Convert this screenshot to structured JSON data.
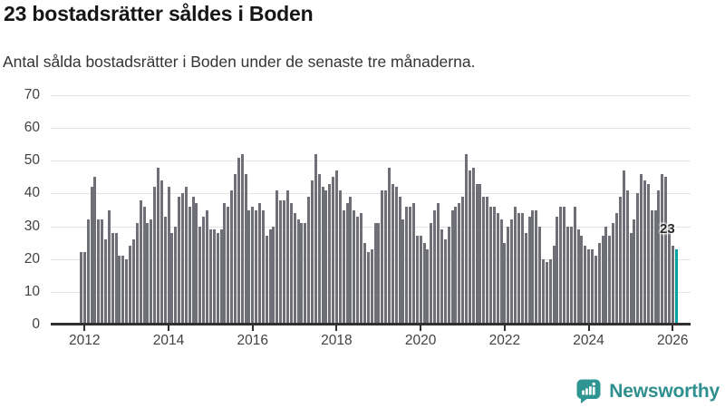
{
  "chart_data": {
    "type": "bar",
    "title": "23 bostadsrätter såldes i Boden",
    "subtitle": "Antal sålda bostadsrätter i Boden under de senaste tre månaderna.",
    "ylim": [
      0,
      70
    ],
    "yticks": [
      0,
      10,
      20,
      30,
      40,
      50,
      60,
      70
    ],
    "x_tick_labels": [
      "2012",
      "2014",
      "2016",
      "2018",
      "2020",
      "2022",
      "2024",
      "2026"
    ],
    "grid": true,
    "legend": "none",
    "bar_color": "#6f6f78",
    "values": [
      22,
      22,
      32,
      42,
      45,
      32,
      32,
      26,
      35,
      28,
      28,
      21,
      21,
      20,
      24,
      26,
      31,
      38,
      36,
      31,
      32,
      42,
      48,
      44,
      33,
      42,
      28,
      30,
      39,
      40,
      42,
      36,
      39,
      37,
      30,
      33,
      35,
      29,
      29,
      28,
      29,
      37,
      36,
      41,
      46,
      51,
      52,
      46,
      35,
      36,
      35,
      37,
      35,
      27,
      29,
      30,
      41,
      38,
      38,
      41,
      37,
      34,
      32,
      31,
      31,
      39,
      44,
      52,
      46,
      42,
      41,
      43,
      45,
      47,
      41,
      35,
      37,
      39,
      35,
      33,
      34,
      25,
      22,
      23,
      31,
      31,
      41,
      41,
      48,
      43,
      42,
      39,
      32,
      36,
      36,
      37,
      27,
      27,
      25,
      23,
      31,
      35,
      37,
      29,
      26,
      30,
      35,
      36,
      37,
      39,
      52,
      47,
      48,
      43,
      43,
      39,
      39,
      36,
      36,
      34,
      32,
      25,
      30,
      32,
      36,
      34,
      34,
      28,
      33,
      35,
      35,
      30,
      20,
      19,
      20,
      24,
      33,
      36,
      36,
      30,
      30,
      36,
      29,
      27,
      24,
      23,
      23,
      21,
      25,
      27,
      30,
      27,
      31,
      34,
      39,
      47,
      41,
      28,
      32,
      40,
      46,
      44,
      43,
      35,
      35,
      41,
      46,
      45,
      30,
      24,
      23
    ],
    "highlight": {
      "value": 23,
      "label": "23",
      "color": "#00a2a2"
    }
  },
  "footer": {
    "brand": "Newsworthy",
    "brand_color": "#2e8f8e",
    "logo_icon": "bar-chart-speech-bubble-icon"
  }
}
